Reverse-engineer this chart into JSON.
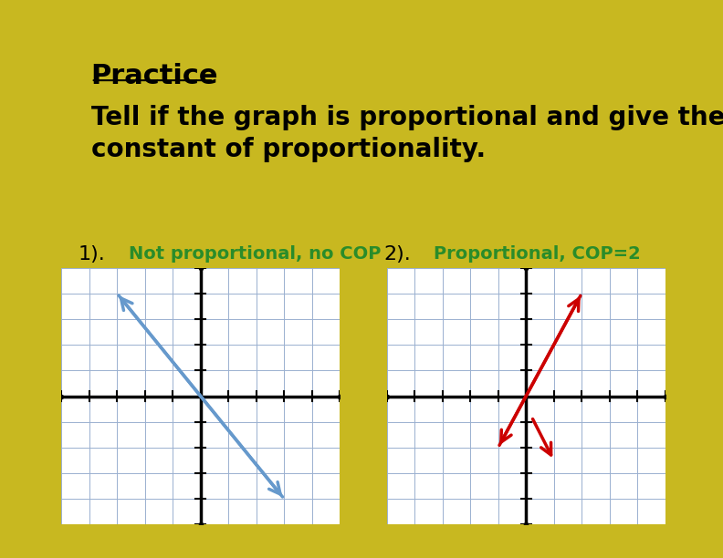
{
  "outer_bg": "#c8b820",
  "inner_bg": "#5b8fc9",
  "white_bg": "#ffffff",
  "title_text": "Practice",
  "subtitle": "Tell if the graph is proportional and give the\nconstant of proportionality.",
  "label1": "1).",
  "label2": "2).",
  "answer1": "Not proportional, no COP",
  "answer2": "Proportional, COP=2",
  "answer_color": "#2a8c2a",
  "grid_color": "#9ab0d0",
  "axis_color": "#000000",
  "arrow1_color": "#6699cc",
  "arrow2_color": "#cc0000",
  "grid_range": [
    -5,
    5
  ],
  "title_fontsize": 22,
  "subtitle_fontsize": 20,
  "label_fontsize": 16,
  "answer_fontsize": 14
}
